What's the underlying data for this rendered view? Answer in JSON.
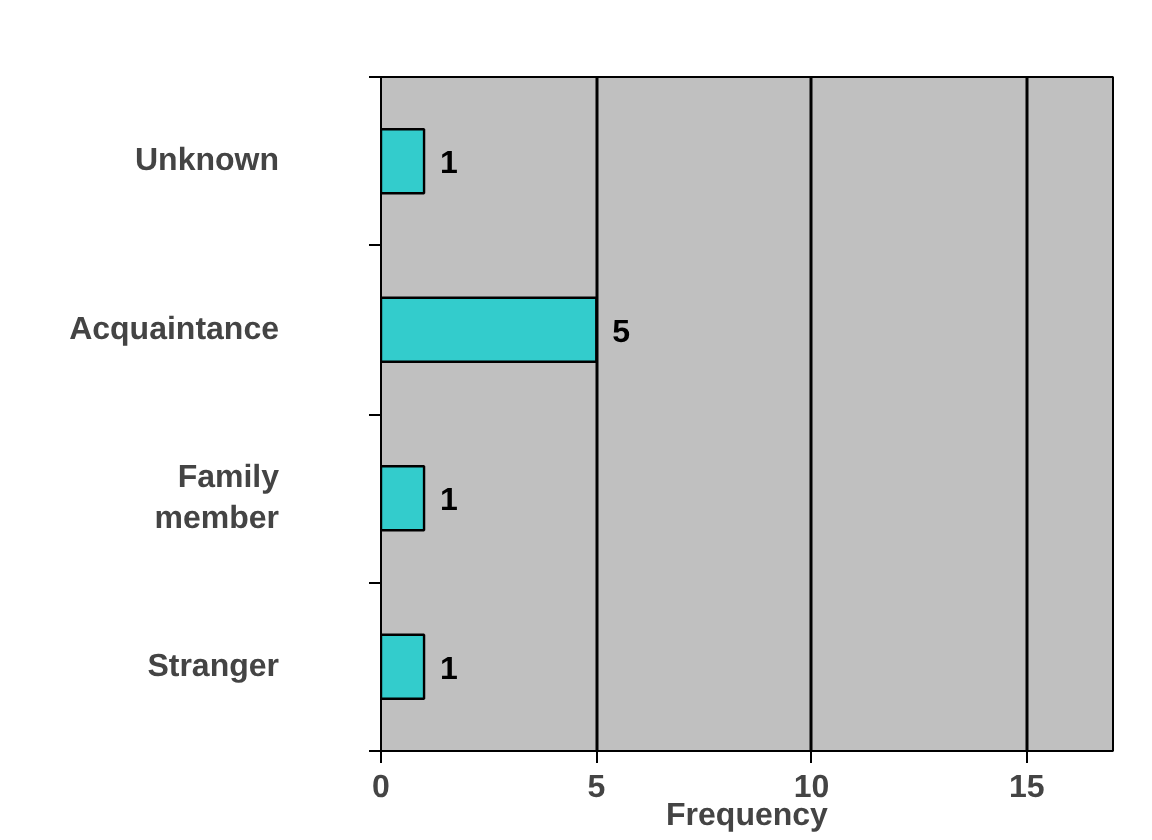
{
  "chart_data": {
    "type": "bar",
    "orientation": "horizontal",
    "xlabel": "Frequency",
    "categories": [
      "Unknown",
      "Acquaintance",
      "Family\nmember",
      "Stranger"
    ],
    "values": [
      1,
      5,
      1,
      1
    ],
    "color": "#33cccc",
    "xlim": [
      0,
      17
    ],
    "xticks": [
      0,
      5,
      10,
      15
    ],
    "grid": "x",
    "data_labels": true
  }
}
